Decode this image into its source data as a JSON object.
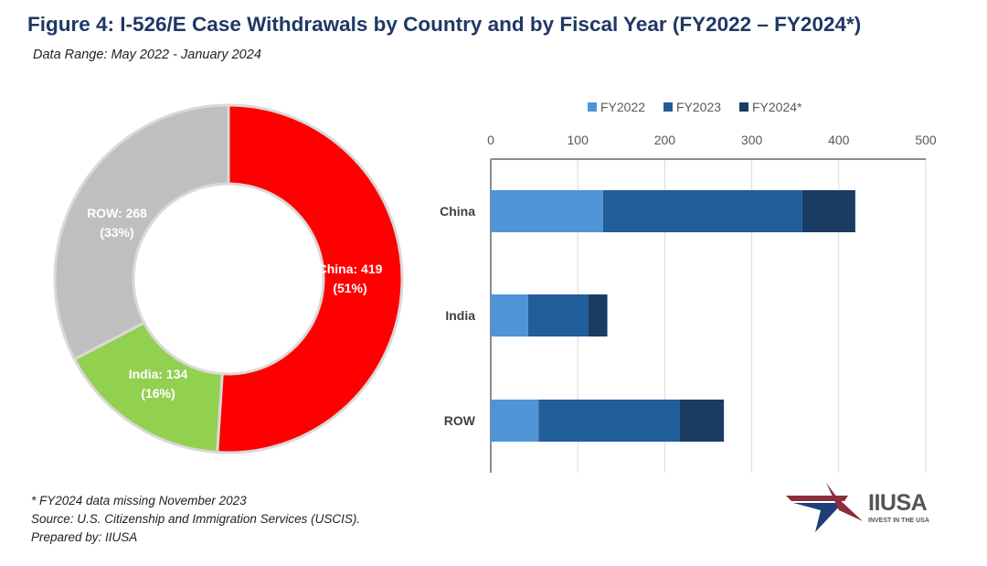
{
  "title": "Figure 4: I-526/E Case Withdrawals by Country and by Fiscal Year (FY2022 – FY2024*)",
  "subtitle": "Data Range: May 2022 - January 2024",
  "notes": [
    "* FY2024 data missing November 2023",
    "Source: U.S. Citizenship and Immigration Services (USCIS).",
    "Prepared by: IIUSA"
  ],
  "logo": {
    "name": "IIUSA",
    "tagline": "INVEST IN THE USA"
  },
  "chart_data": [
    {
      "type": "pie",
      "variant": "donut",
      "slices": [
        {
          "label": "China",
          "value": 419,
          "percent": "51%",
          "color": "#ff0000",
          "label_line1": "China: 419",
          "label_line2": "(51%)"
        },
        {
          "label": "India",
          "value": 134,
          "percent": "16%",
          "color": "#92d050",
          "label_line1": "India: 134",
          "label_line2": "(16%)"
        },
        {
          "label": "ROW",
          "value": 268,
          "percent": "33%",
          "color": "#bfbfbf",
          "label_line1": "ROW: 268",
          "label_line2": "(33%)"
        }
      ]
    },
    {
      "type": "bar",
      "orientation": "horizontal",
      "stacked": true,
      "categories": [
        "China",
        "India",
        "ROW"
      ],
      "series": [
        {
          "name": "FY2022",
          "values": [
            129,
            43,
            55
          ],
          "color": "#4f94d6"
        },
        {
          "name": "FY2023",
          "values": [
            229,
            69,
            162
          ],
          "color": "#215e9a"
        },
        {
          "name": "FY2024*",
          "values": [
            61,
            22,
            51
          ],
          "color": "#1a3c63"
        }
      ],
      "xlim": [
        0,
        500
      ],
      "xticks": [
        0,
        100,
        200,
        300,
        400,
        500
      ],
      "legend": "top",
      "grid": true
    }
  ]
}
